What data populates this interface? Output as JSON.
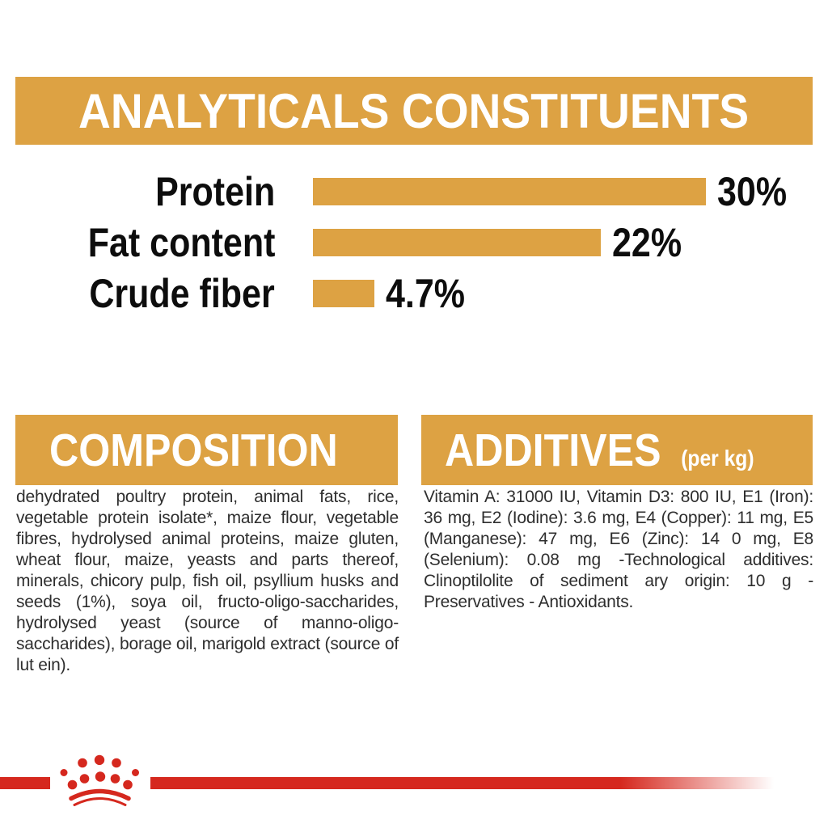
{
  "page": {
    "background": "#FFFFFF",
    "accent_gold": "#DDA243",
    "brand_red": "#D5281E",
    "heading_text": "#FFFFFF",
    "body_text": "#2E2E2E",
    "chart_text": "#0D0D0D"
  },
  "analytical": {
    "title": "ANALYTICALS CONSTITUENTS",
    "chart_data": {
      "type": "bar",
      "orientation": "horizontal",
      "title": "ANALYTICALS CONSTITUENTS",
      "categories": [
        "Protein",
        "Fat content",
        "Crude fiber"
      ],
      "values": [
        30,
        22,
        4.7
      ],
      "value_labels": [
        "30%",
        "22%",
        "4.7%"
      ],
      "unit": "%",
      "xlim": [
        0,
        30
      ],
      "bar_color": "#DDA243",
      "grid": false,
      "legend": "none"
    }
  },
  "composition": {
    "title": "COMPOSITION",
    "body": "dehydrated poultry protein, animal fats, rice, vegetable protein isolate*, maize flour, vegetable fibres, hydrolysed animal proteins, maize gluten, wheat flour, maize, yeasts and parts thereof, minerals, chicory pulp, fish oil, psyllium husks and seeds (1%), soya oil, fructo-oligo-saccharides, hydrolysed yeast (source of manno-oligo-saccharides), borage oil, marigold extract (source of lut ein)."
  },
  "additives": {
    "title": "ADDITIVES",
    "title_suffix": "(per kg)",
    "body": "Vitamin A: 31000 IU, Vitamin D3: 800 IU, E1 (Iron): 36 mg, E2 (Iodine): 3.6 mg, E4 (Copper): 11 mg, E5 (Manganese): 47 mg, E6 (Zinc): 14 0 mg, E8 (Selenium): 0.08 mg -Technological additives: Clinoptilolite of sediment ary origin: 10 g - Preservatives - Antioxidants."
  },
  "footer": {
    "logo": "royal-canin-crown"
  }
}
